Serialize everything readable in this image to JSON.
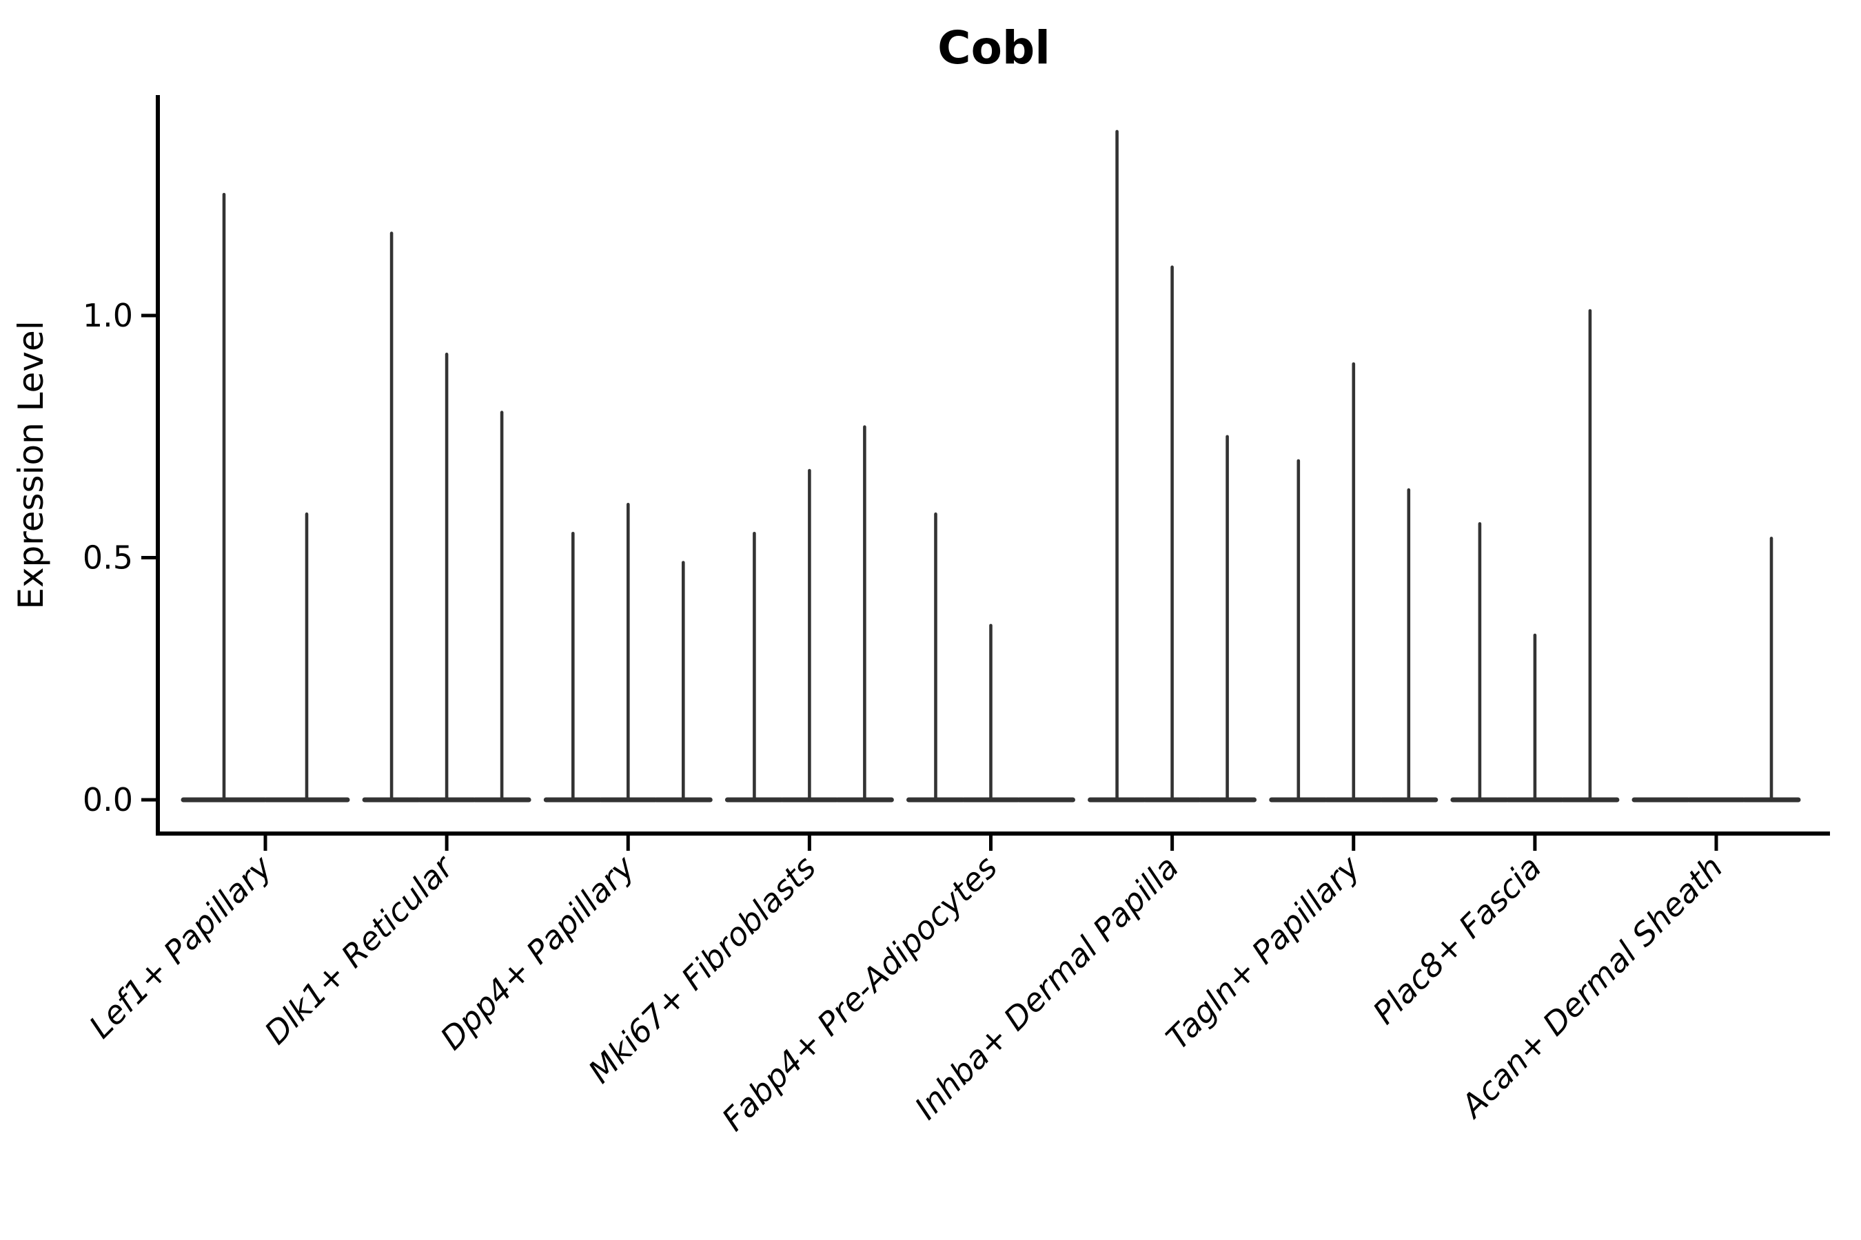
{
  "title": "Cobl",
  "y_axis": {
    "label": "Expression Level",
    "tick_labels": [
      "0.0",
      "0.5",
      "1.0"
    ],
    "tick_values": [
      0.0,
      0.5,
      1.0
    ]
  },
  "colors": {
    "violin": "#333333",
    "axis": "#000000",
    "text": "#000000",
    "background": "#ffffff"
  },
  "chart_data": {
    "type": "violin",
    "title": "Cobl",
    "xlabel": "",
    "ylabel": "Expression Level",
    "ylim": [
      -0.07,
      1.45
    ],
    "yticks": [
      0.0,
      0.5,
      1.0
    ],
    "ytick_labels": [
      "0.0",
      "0.5",
      "1.0"
    ],
    "grid": false,
    "legend": "none",
    "x_tick_rotation": 45,
    "categories": [
      "Lef1+ Papillary",
      "Dlk1+ Reticular",
      "Dpp4+ Papillary",
      "Mki67+ Fibroblasts",
      "Fabp4+ Pre-Adipocytes",
      "Inhba+ Dermal Papilla",
      "Tagln+ Papillary",
      "Plac8+ Fascia",
      "Acan+ Dermal Sheath"
    ],
    "groups": [
      {
        "label": "Lef1+ Papillary",
        "violin_max_values": [
          1.25,
          0.59
        ]
      },
      {
        "label": "Dlk1+ Reticular",
        "violin_max_values": [
          1.17,
          0.92,
          0.8
        ]
      },
      {
        "label": "Dpp4+ Papillary",
        "violin_max_values": [
          0.55,
          0.61,
          0.49
        ]
      },
      {
        "label": "Mki67+ Fibroblasts",
        "violin_max_values": [
          0.55,
          0.68,
          0.77
        ]
      },
      {
        "label": "Fabp4+ Pre-Adipocytes",
        "violin_max_values": [
          0.59,
          0.36,
          0.0
        ]
      },
      {
        "label": "Inhba+ Dermal Papilla",
        "violin_max_values": [
          1.38,
          1.1,
          0.75
        ]
      },
      {
        "label": "Tagln+ Papillary",
        "violin_max_values": [
          0.7,
          0.9,
          0.64
        ]
      },
      {
        "label": "Plac8+ Fascia",
        "violin_max_values": [
          0.57,
          0.34,
          1.01
        ]
      },
      {
        "label": "Acan+ Dermal Sheath",
        "violin_max_values": [
          0.0,
          0.0,
          0.54
        ]
      }
    ]
  }
}
